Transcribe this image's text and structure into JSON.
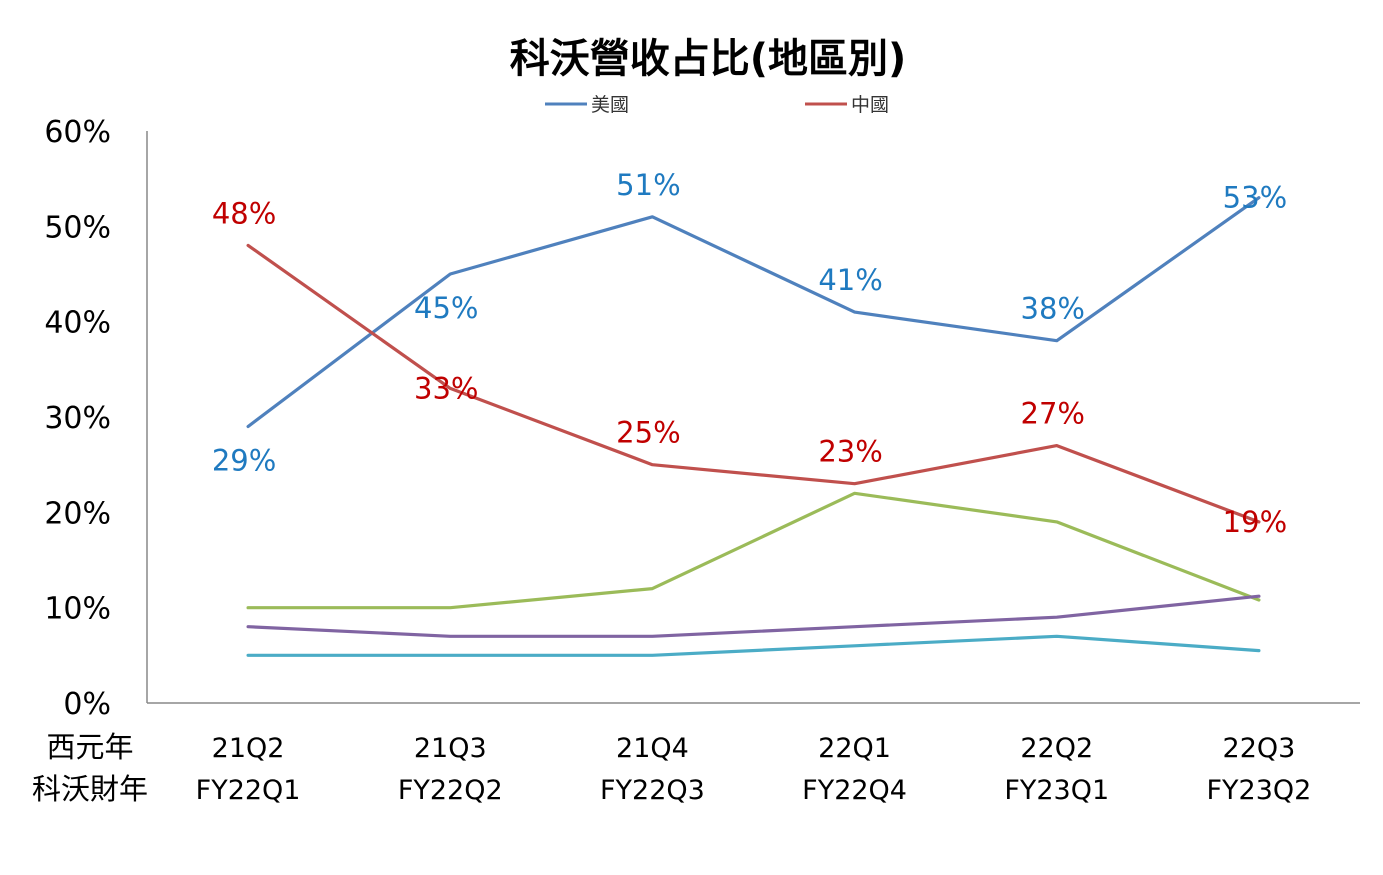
{
  "chart_data": {
    "type": "line",
    "title": "科沃營收占比(地區別)",
    "x_header": [
      "西元年",
      "科沃財年"
    ],
    "categories": [
      {
        "year": "21Q2",
        "fiscal": "FY22Q1"
      },
      {
        "year": "21Q3",
        "fiscal": "FY22Q2"
      },
      {
        "year": "21Q4",
        "fiscal": "FY22Q3"
      },
      {
        "year": "22Q1",
        "fiscal": "FY22Q4"
      },
      {
        "year": "22Q2",
        "fiscal": "FY23Q1"
      },
      {
        "year": "22Q3",
        "fiscal": "FY23Q2"
      }
    ],
    "ylim": [
      0,
      60
    ],
    "yticks": [
      "0%",
      "10%",
      "20%",
      "30%",
      "40%",
      "50%",
      "60%"
    ],
    "grid": false,
    "legend": "top-center",
    "series": [
      {
        "name": "美國",
        "color": "#4F81BD",
        "label_color": "#1F7AC0",
        "show_labels": true,
        "values": [
          29,
          45,
          51,
          41,
          38,
          53
        ],
        "labels": [
          "29%",
          "45%",
          "51%",
          "41%",
          "38%",
          "53%"
        ],
        "label_pos": [
          "below",
          "below",
          "above",
          "above",
          "above",
          "on"
        ]
      },
      {
        "name": "中國",
        "color": "#C0504D",
        "label_color": "#C00000",
        "show_labels": true,
        "values": [
          48,
          33,
          25,
          23,
          27,
          19
        ],
        "labels": [
          "48%",
          "33%",
          "25%",
          "23%",
          "27%",
          "19%"
        ],
        "label_pos": [
          "above",
          "on",
          "above",
          "above",
          "above",
          "on"
        ]
      },
      {
        "color": "#9BBB59",
        "show_labels": false,
        "values": [
          10,
          10,
          12,
          22,
          19,
          10.8
        ]
      },
      {
        "color": "#8064A2",
        "show_labels": false,
        "values": [
          8,
          7,
          7,
          8,
          9,
          11.2
        ]
      },
      {
        "color": "#4BACC6",
        "show_labels": false,
        "values": [
          5,
          5,
          5,
          6,
          7,
          5.5
        ]
      }
    ]
  }
}
